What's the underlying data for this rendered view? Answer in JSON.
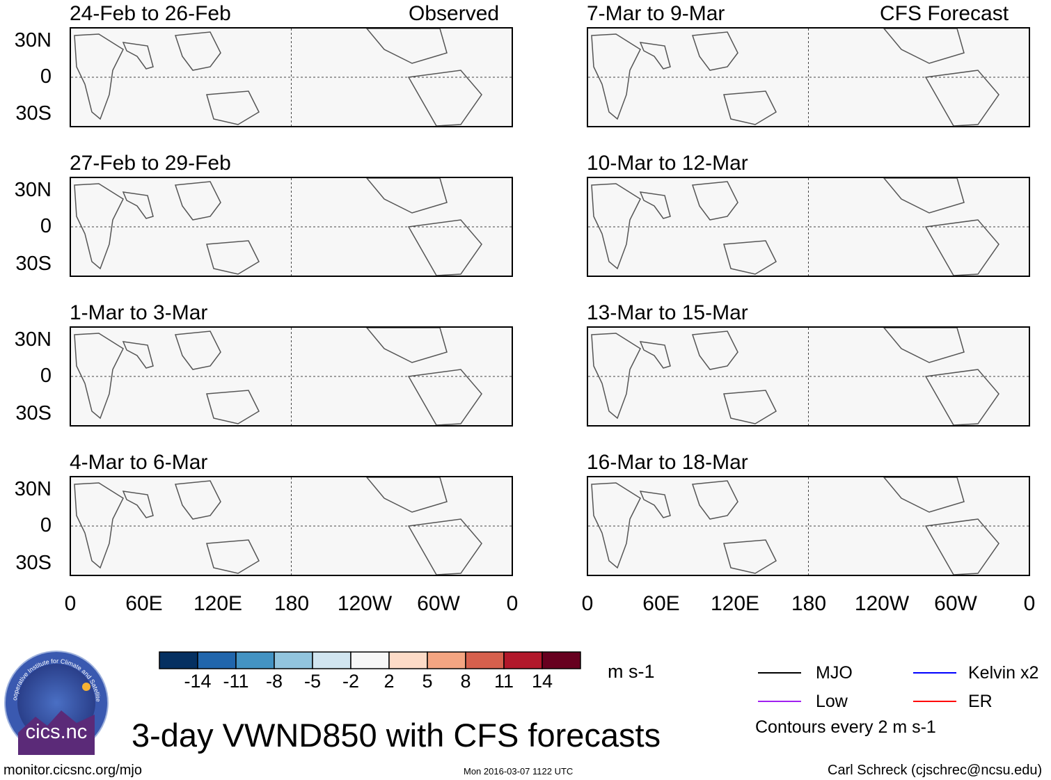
{
  "figure": {
    "title": "3-day VWND850 with CFS forecasts",
    "left_column_label": "Observed",
    "right_column_label": "CFS Forecast"
  },
  "panels_observed": [
    {
      "period": "24-Feb to 26-Feb"
    },
    {
      "period": "27-Feb to 29-Feb"
    },
    {
      "period": "1-Mar to 3-Mar"
    },
    {
      "period": "4-Mar to 6-Mar"
    }
  ],
  "panels_forecast": [
    {
      "period": "7-Mar to 9-Mar"
    },
    {
      "period": "10-Mar to 12-Mar"
    },
    {
      "period": "13-Mar to 15-Mar"
    },
    {
      "period": "16-Mar to 18-Mar"
    }
  ],
  "lat_labels": [
    "30N",
    "0",
    "30S"
  ],
  "lon_labels": [
    "0",
    "60E",
    "120E",
    "180",
    "120W",
    "60W",
    "0"
  ],
  "colorbar": {
    "unit": "m s-1",
    "labels": [
      "-14",
      "-11",
      "-8",
      "-5",
      "-2",
      "2",
      "5",
      "8",
      "11",
      "14"
    ],
    "colors": [
      "#053061",
      "#2166ac",
      "#4393c3",
      "#92c5de",
      "#d1e5f0",
      "#f7f7f7",
      "#fddbc7",
      "#f4a582",
      "#d6604d",
      "#b2182b",
      "#67001f"
    ]
  },
  "legend": {
    "items": [
      {
        "label": "MJO",
        "color": "#000000"
      },
      {
        "label": "Kelvin x2",
        "color": "#0000ff"
      },
      {
        "label": "Low",
        "color": "#a020f0"
      },
      {
        "label": "ER",
        "color": "#ff0000"
      }
    ],
    "contours_note": "Contours every 2 m s-1"
  },
  "logo": {
    "text": "cics.nc",
    "ring_text": "Cooperative Institute for Climate and Satellites"
  },
  "footer": {
    "left": "monitor.cicsnc.org/mjo",
    "center": "Mon 2016-03-07 1122 UTC",
    "right": "Carl Schreck (cjschrec@ncsu.edu)"
  }
}
